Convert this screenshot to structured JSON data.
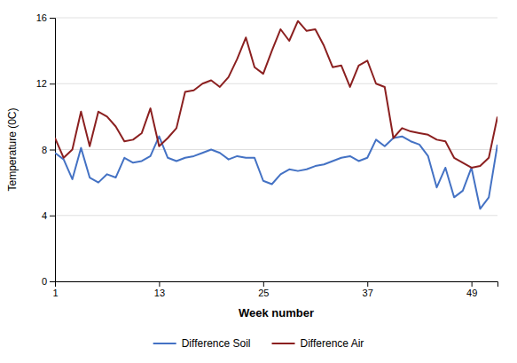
{
  "chart_data": {
    "type": "line",
    "x": [
      1,
      2,
      3,
      4,
      5,
      6,
      7,
      8,
      9,
      10,
      11,
      12,
      13,
      14,
      15,
      16,
      17,
      18,
      19,
      20,
      21,
      22,
      23,
      24,
      25,
      26,
      27,
      28,
      29,
      30,
      31,
      32,
      33,
      34,
      35,
      36,
      37,
      38,
      39,
      40,
      41,
      42,
      43,
      44,
      45,
      46,
      47,
      48,
      49,
      50,
      51,
      52
    ],
    "series": [
      {
        "name": "Difference Soil",
        "color": "#4472C4",
        "values": [
          7.8,
          7.4,
          6.2,
          8.1,
          6.3,
          6.0,
          6.5,
          6.3,
          7.5,
          7.2,
          7.3,
          7.6,
          8.8,
          7.5,
          7.3,
          7.5,
          7.6,
          7.8,
          8.0,
          7.8,
          7.4,
          7.6,
          7.5,
          7.5,
          6.1,
          5.9,
          6.5,
          6.8,
          6.7,
          6.8,
          7.0,
          7.1,
          7.3,
          7.5,
          7.6,
          7.3,
          7.5,
          8.6,
          8.2,
          8.7,
          8.8,
          8.5,
          8.3,
          7.6,
          5.7,
          6.9,
          5.1,
          5.5,
          6.9,
          4.4,
          5.1,
          8.3
        ]
      },
      {
        "name": "Difference Air",
        "color": "#8B2020",
        "values": [
          8.7,
          7.5,
          8.0,
          10.3,
          8.2,
          10.3,
          10.0,
          9.4,
          8.5,
          8.6,
          9.0,
          10.5,
          8.2,
          8.7,
          9.3,
          11.5,
          11.6,
          12.0,
          12.2,
          11.8,
          12.4,
          13.5,
          14.8,
          13.0,
          12.6,
          14.0,
          15.3,
          14.6,
          15.8,
          15.2,
          15.3,
          14.3,
          13.0,
          13.1,
          11.8,
          13.1,
          13.4,
          12.0,
          11.8,
          8.7,
          9.3,
          9.1,
          9.0,
          8.9,
          8.6,
          8.5,
          7.5,
          7.2,
          6.9,
          7.0,
          7.5,
          10.0
        ]
      }
    ],
    "xlabel": "Week number",
    "ylabel": "Temperature (0C)",
    "xlim": [
      1,
      52
    ],
    "ylim": [
      0,
      16
    ],
    "xticks": [
      1,
      13,
      25,
      37,
      49
    ],
    "yticks": [
      0,
      4,
      8,
      12,
      16
    ],
    "grid": true,
    "legend": "bottom"
  }
}
